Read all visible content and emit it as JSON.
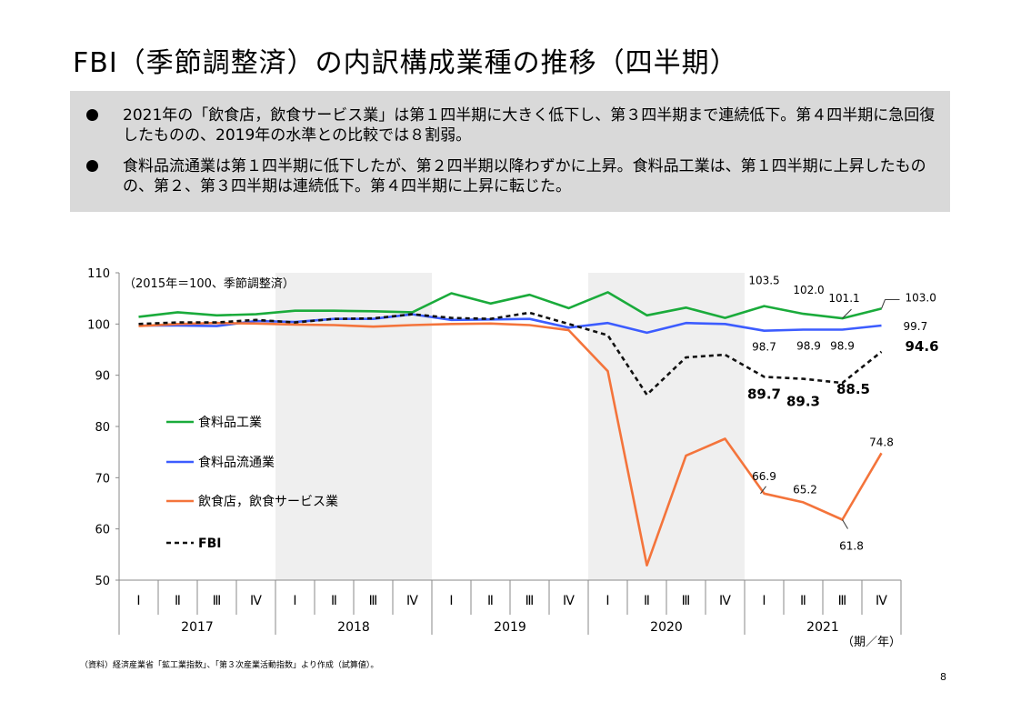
{
  "title": "FBI（季節調整済）の内訳構成業種の推移（四半期）",
  "summary": {
    "bullets": [
      "2021年の「飲食店，飲食サービス業」は第１四半期に大きく低下し、第３四半期まで連続低下。第４四半期に急回復したものの、2019年の水準との比較では８割弱。",
      "食料品流通業は第１四半期に低下したが、第２四半期以降わずかに上昇。食料品工業は、第１四半期に上昇したものの、第２、第３四半期は連続低下。第４四半期に上昇に転じた。"
    ]
  },
  "footnote": "（資料）経済産業省「鉱工業指数」、「第３次産業活動指数」より作成（試算値）。",
  "page_number": "8",
  "chart_data": {
    "type": "line",
    "note": "（2015年＝100、季節調整済）",
    "x_unit": "（期／年）",
    "ylim": [
      50,
      110
    ],
    "yticks": [
      "50",
      "60",
      "70",
      "80",
      "90",
      "100",
      "110"
    ],
    "quarter_labels": [
      "Ⅰ",
      "Ⅱ",
      "Ⅲ",
      "Ⅳ",
      "Ⅰ",
      "Ⅱ",
      "Ⅲ",
      "Ⅳ",
      "Ⅰ",
      "Ⅱ",
      "Ⅲ",
      "Ⅳ",
      "Ⅰ",
      "Ⅱ",
      "Ⅲ",
      "Ⅳ",
      "Ⅰ",
      "Ⅱ",
      "Ⅲ",
      "Ⅳ"
    ],
    "years": [
      "2017",
      "2018",
      "2019",
      "2020",
      "2021"
    ],
    "shaded_years": [
      "2018",
      "2020"
    ],
    "series": [
      {
        "name": "食料品工業",
        "color": "#1aab3b",
        "dash": false,
        "values": [
          101.4,
          102.3,
          101.7,
          101.9,
          102.6,
          102.6,
          102.5,
          102.3,
          106.0,
          104.0,
          105.7,
          103.1,
          106.2,
          101.7,
          103.2,
          101.2,
          103.5,
          102.0,
          101.1,
          103.0
        ]
      },
      {
        "name": "食料品流通業",
        "color": "#3c5cff",
        "dash": false,
        "values": [
          99.7,
          99.7,
          99.6,
          100.6,
          100.4,
          101.0,
          101.0,
          101.9,
          100.8,
          100.9,
          101.0,
          99.3,
          100.2,
          98.3,
          100.2,
          100.0,
          98.7,
          98.9,
          98.9,
          99.7
        ]
      },
      {
        "name": "飲食店，飲食サービス業",
        "color": "#f4743b",
        "dash": false,
        "values": [
          99.6,
          100.0,
          100.2,
          100.1,
          99.9,
          99.8,
          99.5,
          99.8,
          100.0,
          100.1,
          99.8,
          98.8,
          90.8,
          52.9,
          74.3,
          77.6,
          66.9,
          65.2,
          61.8,
          74.8
        ]
      },
      {
        "name": "FBI",
        "color": "#111111",
        "dash": true,
        "values": [
          100.0,
          100.3,
          100.3,
          100.8,
          100.3,
          101.0,
          101.1,
          101.9,
          101.2,
          101.0,
          102.2,
          100.0,
          97.8,
          86.2,
          93.5,
          94.0,
          89.7,
          89.3,
          88.5,
          94.6
        ]
      }
    ],
    "data_labels": [
      {
        "text": "103.5",
        "series": 0,
        "index": 16,
        "bold": false
      },
      {
        "text": "102.0",
        "series": 0,
        "index": 17,
        "bold": false
      },
      {
        "text": "101.1",
        "series": 0,
        "index": 18,
        "bold": false
      },
      {
        "text": "103.0",
        "series": 0,
        "index": 19,
        "bold": false
      },
      {
        "text": "98.7",
        "series": 1,
        "index": 16,
        "bold": false
      },
      {
        "text": "98.9",
        "series": 1,
        "index": 17,
        "bold": false
      },
      {
        "text": "98.9",
        "series": 1,
        "index": 18,
        "bold": false
      },
      {
        "text": "99.7",
        "series": 1,
        "index": 19,
        "bold": false
      },
      {
        "text": "66.9",
        "series": 2,
        "index": 16,
        "bold": false
      },
      {
        "text": "65.2",
        "series": 2,
        "index": 17,
        "bold": false
      },
      {
        "text": "61.8",
        "series": 2,
        "index": 18,
        "bold": false
      },
      {
        "text": "74.8",
        "series": 2,
        "index": 19,
        "bold": false
      },
      {
        "text": "89.7",
        "series": 3,
        "index": 16,
        "bold": true
      },
      {
        "text": "89.3",
        "series": 3,
        "index": 17,
        "bold": true
      },
      {
        "text": "88.5",
        "series": 3,
        "index": 18,
        "bold": true
      },
      {
        "text": "94.6",
        "series": 3,
        "index": 19,
        "bold": true
      }
    ],
    "legend": [
      "食料品工業",
      "食料品流通業",
      "飲食店，飲食サービス業",
      "FBI"
    ]
  }
}
